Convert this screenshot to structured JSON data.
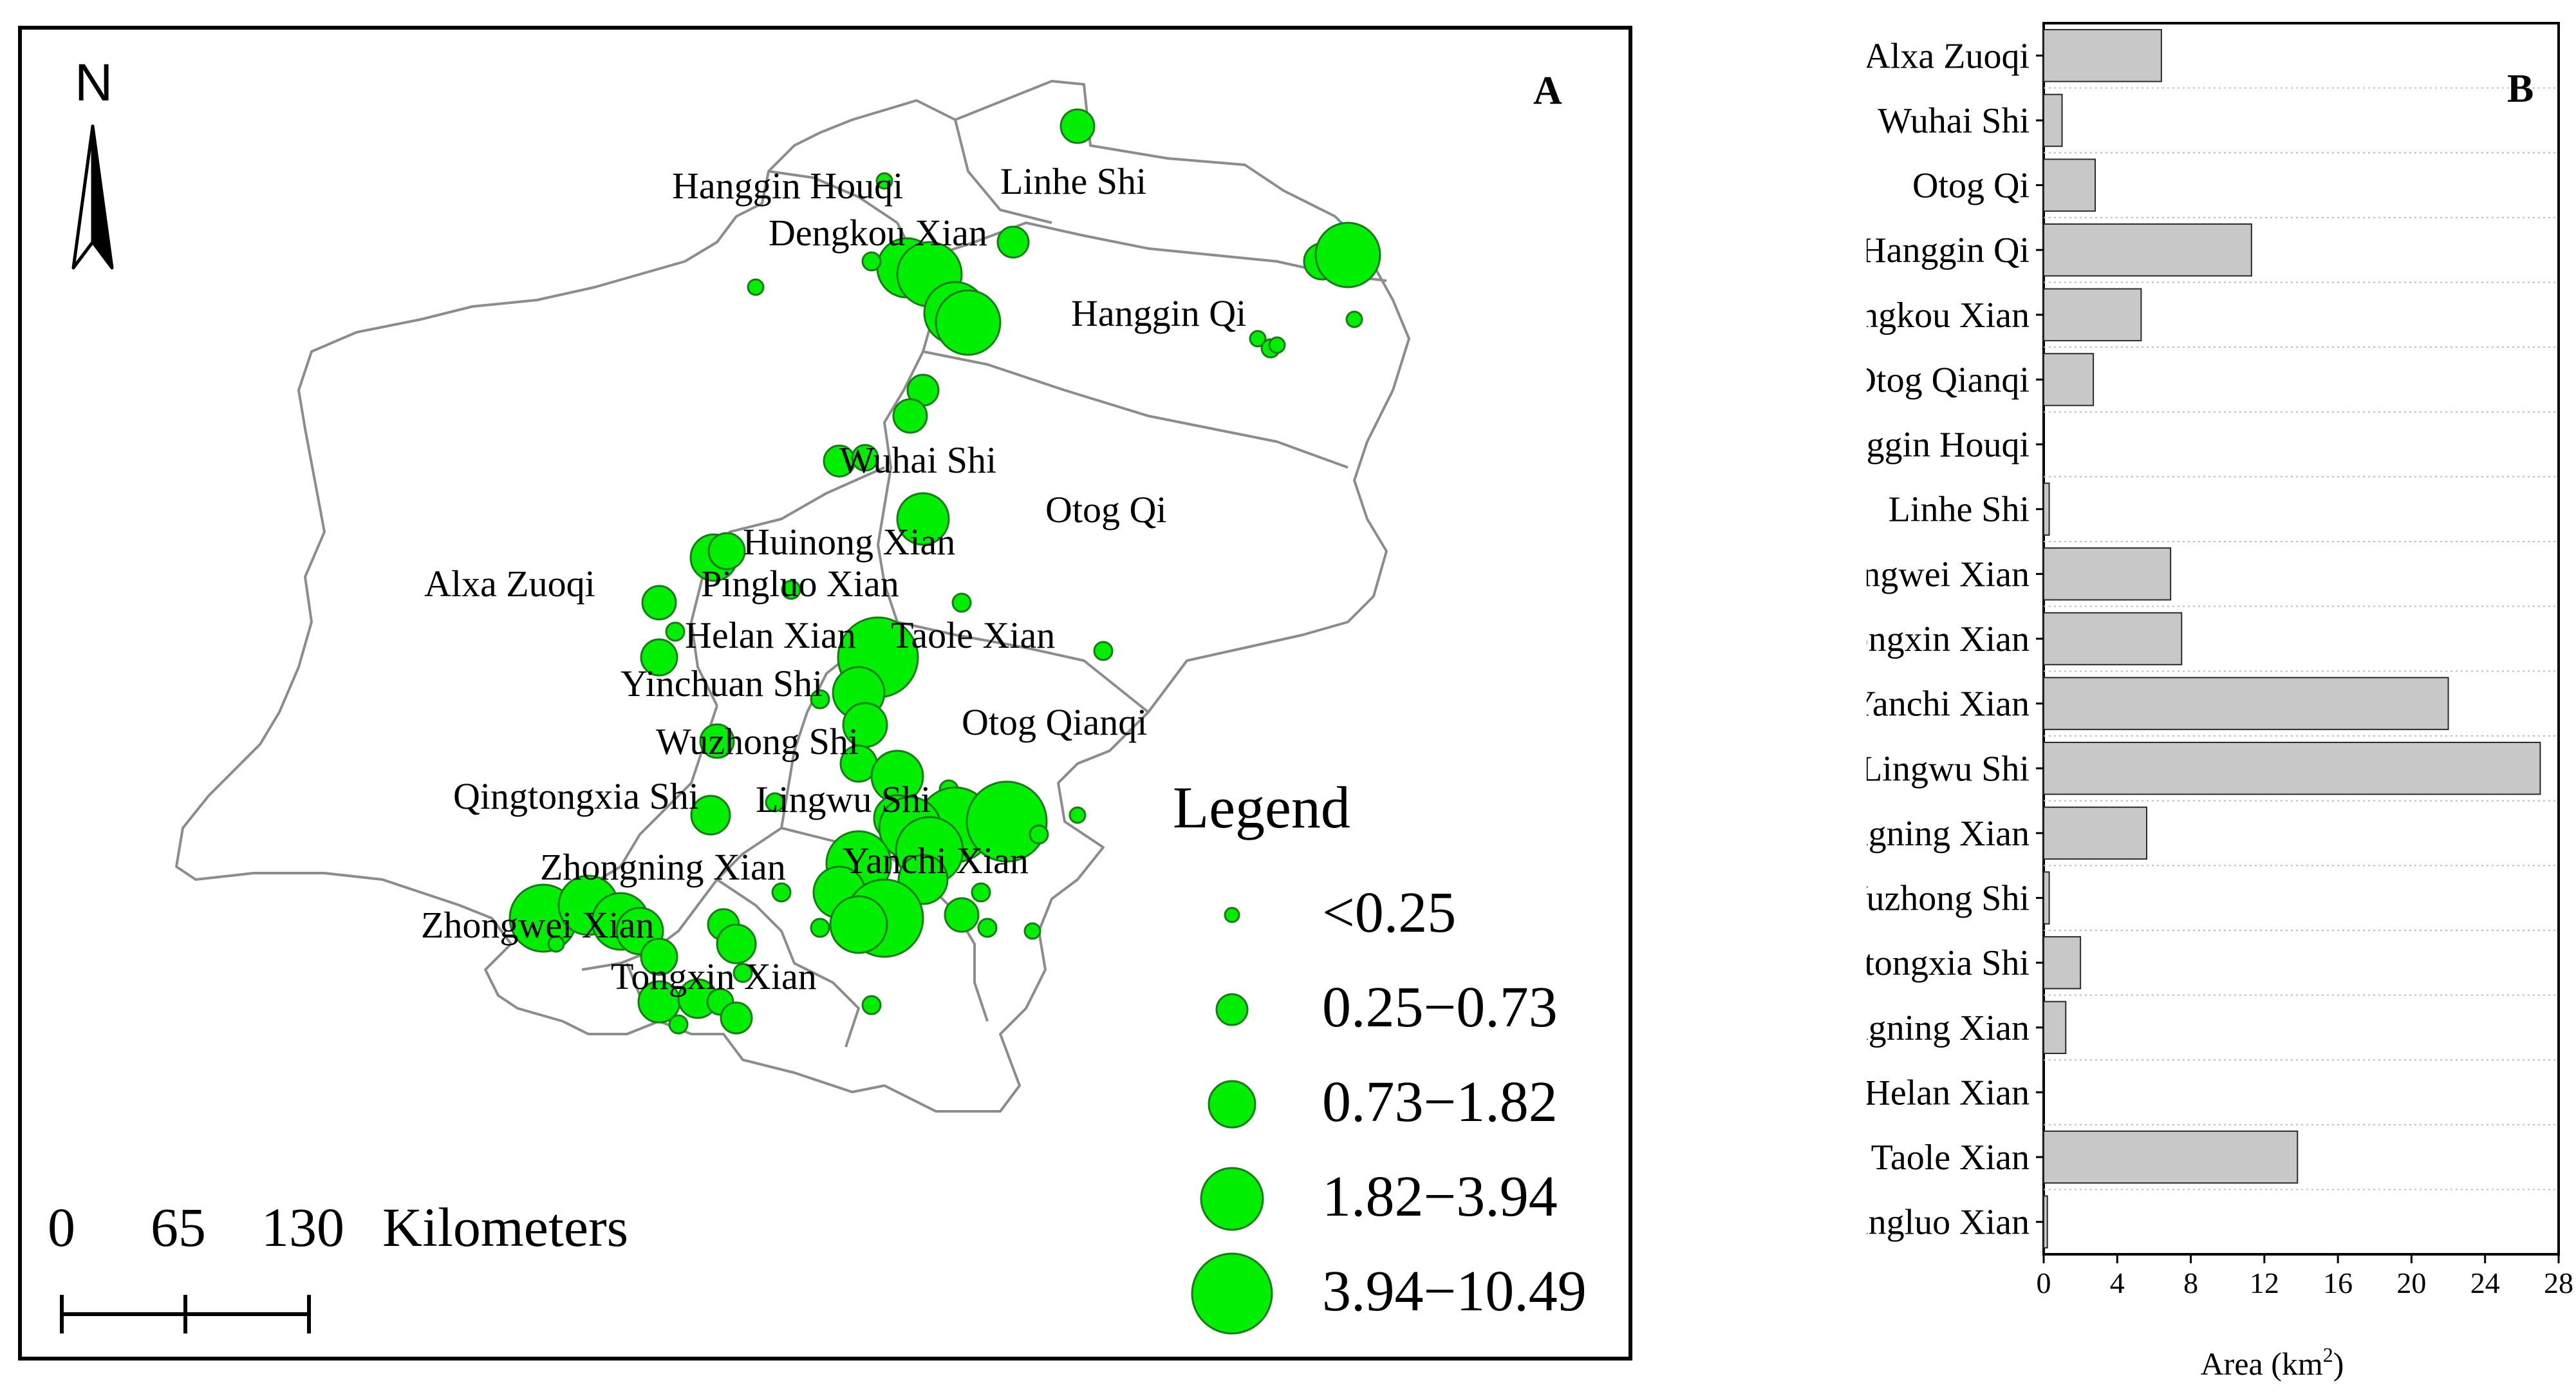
{
  "map": {
    "panel_letter": "A",
    "north_label": "N",
    "legend_title": "Legend",
    "legend_classes": [
      "<0.25",
      "0.25−0.73",
      "0.73−1.82",
      "1.82−3.94",
      "3.94−10.49"
    ],
    "scale_bar": {
      "ticks": [
        "0",
        "65",
        "130"
      ],
      "unit": "Kilometers"
    },
    "place_labels": [
      "Hanggin Houqi",
      "Linhe Shi",
      "Dengkou Xian",
      "Hanggin Qi",
      "Wuhai Shi",
      "Otog Qi",
      "Huinong Xian",
      "Alxa Zuoqi",
      "Pingluo Xian",
      "Helan Xian",
      "Taole Xian",
      "Yinchuan Shi",
      "Otog Qianqi",
      "Wuzhong Shi",
      "Qingtongxia Shi",
      "Lingwu Shi",
      "Zhongning Xian",
      "Yanchi Xian",
      "Zhongwei Xian",
      "Tongxin Xian"
    ],
    "symbol_color": "#00ee00",
    "boundary_color": "#8c8c8c"
  },
  "chart_data": {
    "type": "bar",
    "orientation": "horizontal",
    "panel_letter": "B",
    "categories": [
      "Alxa Zuoqi",
      "Wuhai Shi",
      "Otog Qi",
      "Hanggin Qi",
      "Dengkou Xian",
      "Otog Qianqi",
      "Hanggin Houqi",
      "Linhe Shi",
      "Zhongwei Xian",
      "Tongxin Xian",
      "Yanchi Xian",
      "Lingwu Shi",
      "Zhongning Xian",
      "Wuzhong Shi",
      "Qingtongxia Shi",
      "Yongning Xian",
      "Helan Xian",
      "Taole Xian",
      "Pingluo Xian"
    ],
    "values": [
      6.4,
      1.0,
      2.8,
      11.3,
      5.3,
      2.7,
      0.0,
      0.3,
      6.9,
      7.5,
      22.0,
      27.0,
      5.6,
      0.3,
      2.0,
      1.2,
      0.0,
      13.8,
      0.2
    ],
    "xlabel_main": "Area (km",
    "xlabel_sup": "2",
    "xlabel_end": ")",
    "xlim": [
      0,
      28
    ],
    "xticks": [
      "0",
      "4",
      "8",
      "12",
      "16",
      "20",
      "24",
      "28"
    ],
    "bar_color": "#c8c8c8",
    "grid": "dotted horizontal"
  }
}
